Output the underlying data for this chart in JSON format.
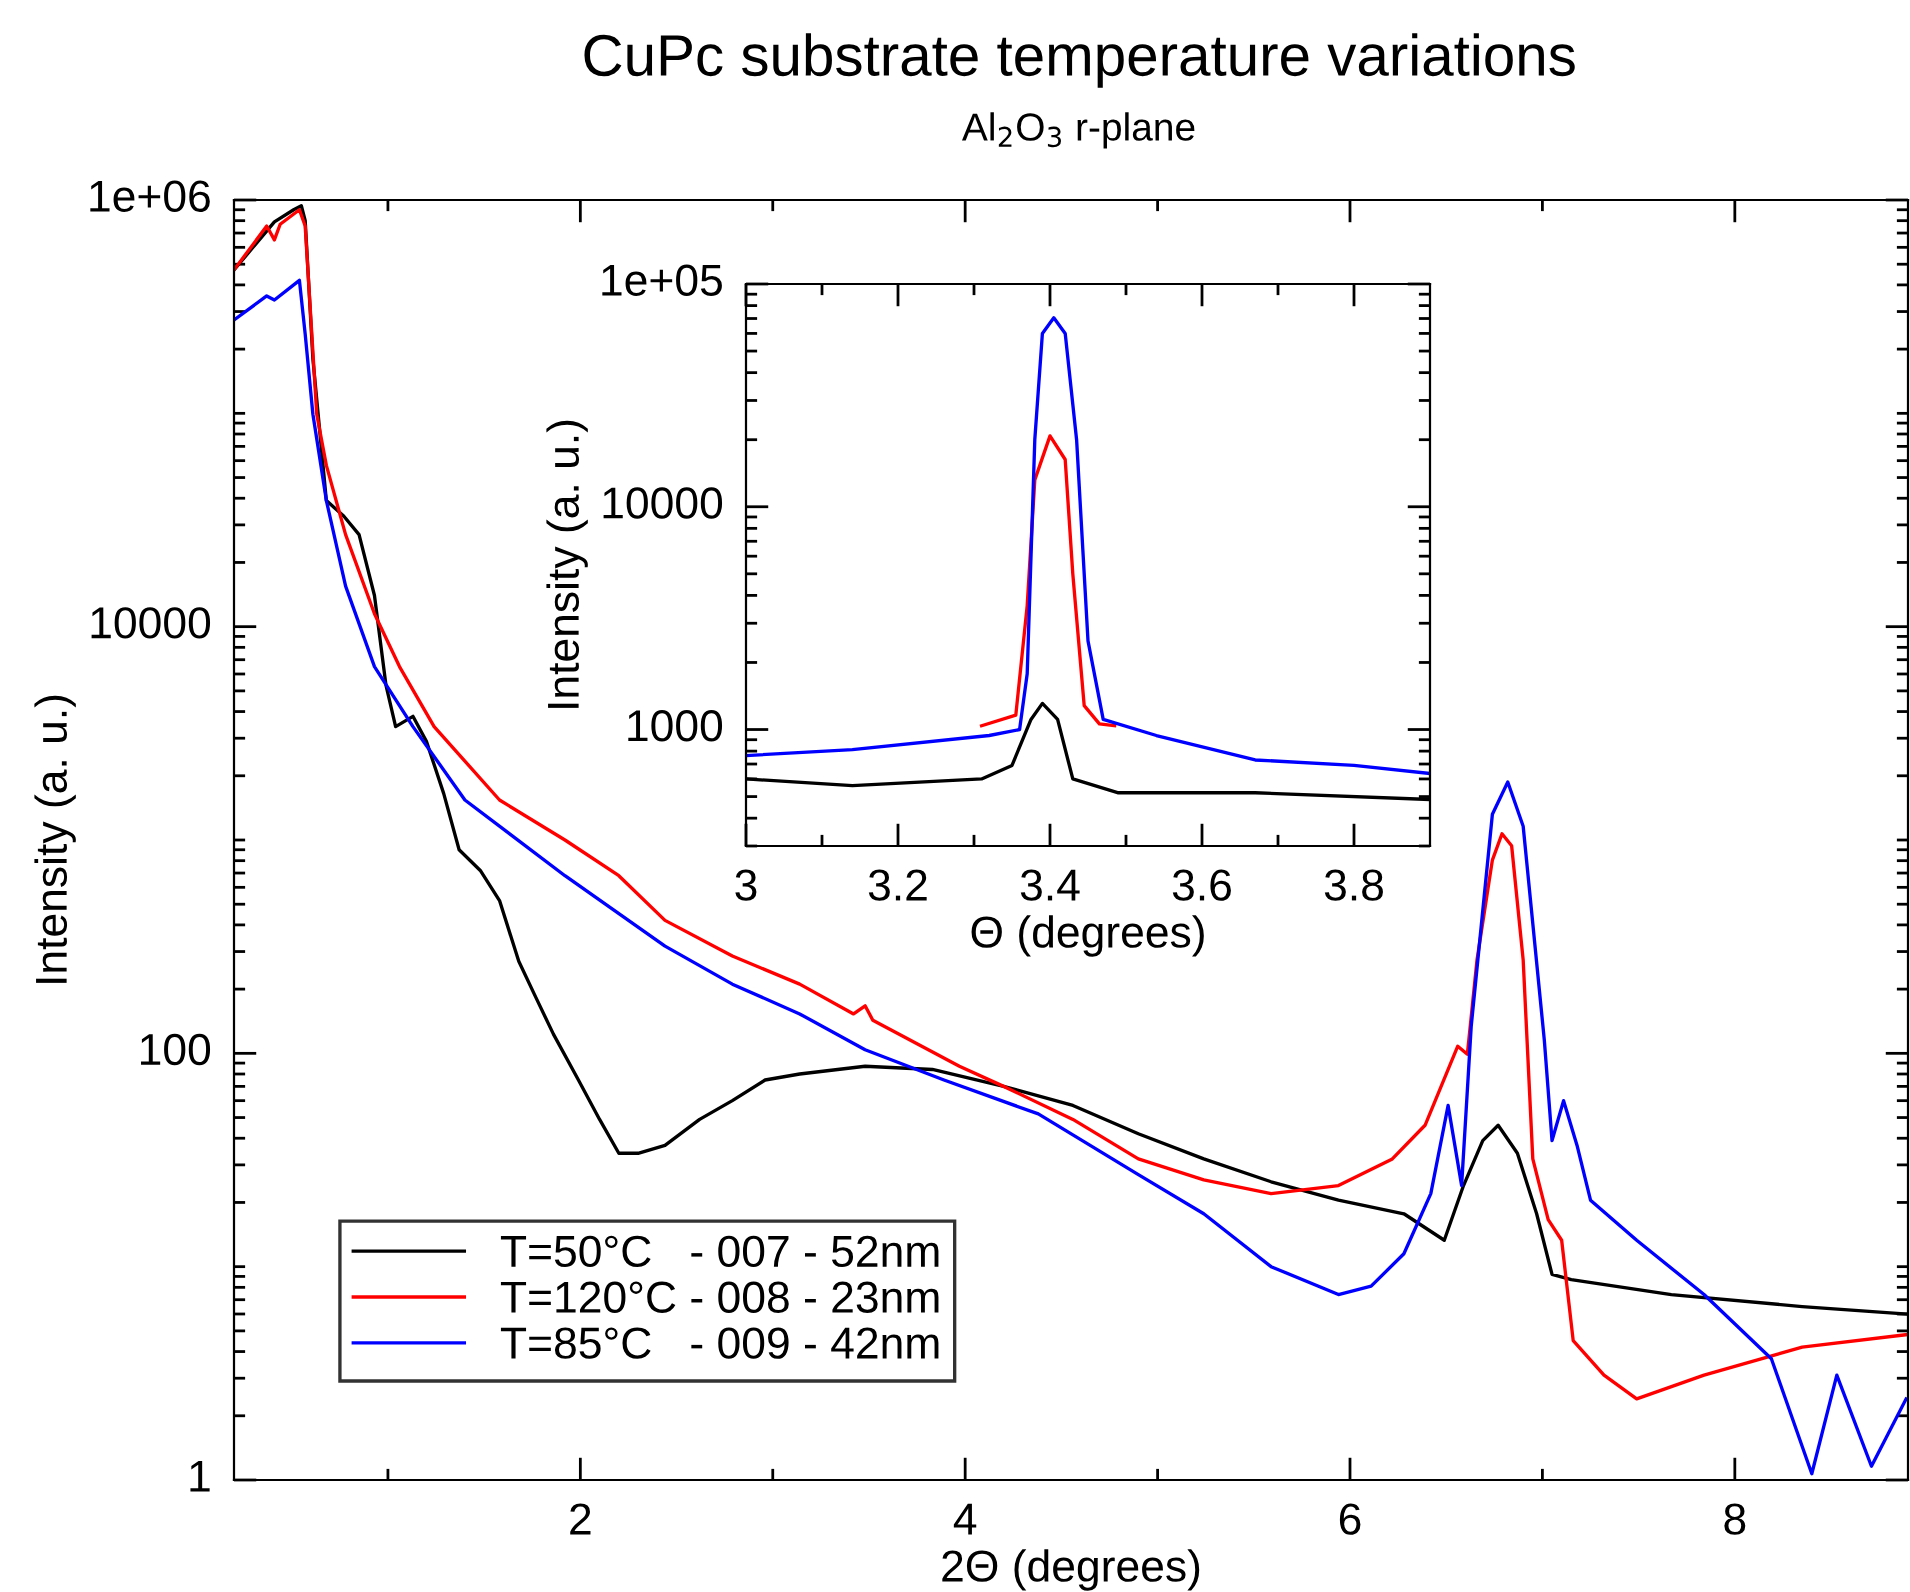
{
  "chart_data": [
    {
      "type": "line",
      "title": "CuPc substrate temperature variations",
      "subtitle": "Al$_{2}$O$_{3}$ r-plane",
      "xlabel": "2Θ (degrees)",
      "ylabel": "Intensity (a. u.)",
      "log": "y",
      "legend": "bottom left",
      "xlim": [
        0.2,
        8.9
      ],
      "ylim": [
        1,
        1000000
      ],
      "xticks": [
        {
          "value": 1,
          "label": null
        },
        2,
        {
          "value": 3,
          "label": null
        },
        4,
        {
          "value": 5,
          "label": null
        },
        6,
        {
          "value": 7,
          "label": null
        },
        8
      ],
      "yticks": [
        1,
        {
          "value": 2,
          "label": null
        },
        {
          "value": 3,
          "label": null
        },
        {
          "value": 4,
          "label": null
        },
        {
          "value": 5,
          "label": null
        },
        {
          "value": 6,
          "label": null
        },
        {
          "value": 7,
          "label": null
        },
        {
          "value": 8,
          "label": null
        },
        {
          "value": 9,
          "label": null
        },
        {
          "value": 10,
          "label": null
        },
        {
          "value": 20,
          "label": null
        },
        {
          "value": 30,
          "label": null
        },
        {
          "value": 40,
          "label": null
        },
        {
          "value": 50,
          "label": null
        },
        {
          "value": 60,
          "label": null
        },
        {
          "value": 70,
          "label": null
        },
        {
          "value": 80,
          "label": null
        },
        {
          "value": 90,
          "label": null
        },
        100,
        {
          "value": 200,
          "label": null
        },
        {
          "value": 300,
          "label": null
        },
        {
          "value": 400,
          "label": null
        },
        {
          "value": 500,
          "label": null
        },
        {
          "value": 600,
          "label": null
        },
        {
          "value": 700,
          "label": null
        },
        {
          "value": 800,
          "label": null
        },
        {
          "value": 900,
          "label": null
        },
        {
          "value": 1000,
          "label": null
        },
        {
          "value": 2000,
          "label": null
        },
        {
          "value": 3000,
          "label": null
        },
        {
          "value": 4000,
          "label": null
        },
        {
          "value": 5000,
          "label": null
        },
        {
          "value": 6000,
          "label": null
        },
        {
          "value": 7000,
          "label": null
        },
        {
          "value": 8000,
          "label": null
        },
        {
          "value": 9000,
          "label": null
        },
        10000,
        {
          "value": 20000,
          "label": null
        },
        {
          "value": 30000,
          "label": null
        },
        {
          "value": 40000,
          "label": null
        },
        {
          "value": 50000,
          "label": null
        },
        {
          "value": 60000,
          "label": null
        },
        {
          "value": 70000,
          "label": null
        },
        {
          "value": 80000,
          "label": null
        },
        {
          "value": 90000,
          "label": null
        },
        {
          "value": 100000,
          "label": null
        },
        {
          "value": 200000,
          "label": null
        },
        {
          "value": 300000,
          "label": null
        },
        {
          "value": 400000,
          "label": null
        },
        {
          "value": 500000,
          "label": null
        },
        {
          "value": 600000,
          "label": null
        },
        {
          "value": 700000,
          "label": null
        },
        {
          "value": 800000,
          "label": null
        },
        {
          "value": 900000,
          "label": null
        },
        {
          "value": 1000000,
          "label": "1e+06"
        }
      ],
      "series": [
        {
          "name": "T=50°C   - 007 - 52nm",
          "color": "#000000",
          "x": [
            0.2,
            0.41,
            0.51,
            0.55,
            0.57,
            0.61,
            0.65,
            0.68,
            0.77,
            0.85,
            0.93,
            0.99,
            1.04,
            1.13,
            1.2,
            1.29,
            1.37,
            1.48,
            1.58,
            1.68,
            1.76,
            1.86,
            1.99,
            2.1,
            2.2,
            2.3,
            2.44,
            2.62,
            2.79,
            2.96,
            3.14,
            3.48,
            3.83,
            4.2,
            4.56,
            4.9,
            5.24,
            5.59,
            5.94,
            6.28,
            6.49,
            6.59,
            6.69,
            6.77,
            6.87,
            6.97,
            7.05,
            7.15,
            7.67,
            8.35,
            8.89
          ],
          "values": [
            470000,
            790000,
            900000,
            940000,
            800000,
            180000,
            75000,
            39000,
            33000,
            27000,
            14000,
            5300,
            3400,
            3800,
            2900,
            1650,
            900,
            720,
            520,
            270,
            190,
            123,
            75,
            49,
            34,
            34,
            37,
            49,
            60,
            75,
            80,
            87,
            84,
            70,
            57,
            42,
            32,
            25,
            20.5,
            17.7,
            13.3,
            24,
            39,
            46,
            34,
            17.7,
            9.2,
            8.7,
            7.4,
            6.5,
            6.0
          ]
        },
        {
          "name": "T=120°C - 008 - 23nm",
          "color": "#ff0000",
          "x": [
            0.2,
            0.37,
            0.41,
            0.44,
            0.54,
            0.57,
            0.63,
            0.68,
            0.78,
            0.93,
            1.06,
            1.24,
            1.58,
            1.92,
            2.2,
            2.44,
            2.79,
            3.14,
            3.42,
            3.48,
            3.52,
            3.97,
            4.2,
            4.56,
            4.9,
            5.24,
            5.59,
            5.94,
            6.22,
            6.39,
            6.56,
            6.61,
            6.66,
            6.74,
            6.79,
            6.84,
            6.9,
            6.95,
            7.03,
            7.1,
            7.16,
            7.32,
            7.49,
            7.84,
            8.35,
            8.89
          ],
          "values": [
            470000,
            755000,
            650000,
            770000,
            900000,
            755000,
            99000,
            57000,
            27000,
            11500,
            6500,
            3400,
            1540,
            1000,
            680,
            420,
            286,
            211,
            153,
            167,
            143,
            87,
            70,
            49,
            32,
            25.5,
            22,
            24,
            32,
            46,
            108,
            99,
            274,
            805,
            1070,
            940,
            274,
            32,
            16.6,
            13.3,
            4.5,
            3.1,
            2.4,
            3.1,
            4.2,
            4.8
          ]
        },
        {
          "name": "T=85°C   - 009 - 42nm",
          "color": "#0000ff",
          "x": [
            0.2,
            0.37,
            0.41,
            0.54,
            0.57,
            0.61,
            0.68,
            0.78,
            0.93,
            1.13,
            1.4,
            1.92,
            2.44,
            2.79,
            3.14,
            3.48,
            3.89,
            4.38,
            4.9,
            5.24,
            5.59,
            5.94,
            6.11,
            6.28,
            6.42,
            6.51,
            6.58,
            6.63,
            6.74,
            6.82,
            6.9,
            7.01,
            7.05,
            7.11,
            7.18,
            7.25,
            7.49,
            7.84,
            8.19,
            8.4,
            8.53,
            8.71,
            8.89
          ],
          "values": [
            274000,
            355000,
            340000,
            420000,
            235000,
            99000,
            39000,
            15500,
            6500,
            3400,
            1540,
            680,
            318,
            211,
            153,
            104,
            75,
            52,
            27,
            17.7,
            10,
            7.4,
            8.1,
            11.5,
            22,
            57,
            24,
            134,
            1320,
            1870,
            1160,
            115,
            39,
            60,
            37,
            20.5,
            13.3,
            7.4,
            3.7,
            1.07,
            3.1,
            1.16,
            2.4
          ]
        }
      ]
    },
    {
      "type": "line",
      "xlabel": "Θ (degrees)",
      "ylabel": "Intensity (a. u.)",
      "log": "y",
      "xlim": [
        3,
        3.9
      ],
      "ylim": [
        300,
        100000
      ],
      "xticks": [
        3,
        {
          "value": 3.1,
          "label": null
        },
        3.2,
        {
          "value": 3.3,
          "label": null
        },
        3.4,
        {
          "value": 3.5,
          "label": null
        },
        3.6,
        {
          "value": 3.7,
          "label": null
        },
        3.8
      ],
      "yticks": [
        {
          "value": 300,
          "label": null
        },
        {
          "value": 400,
          "label": null
        },
        {
          "value": 500,
          "label": null
        },
        {
          "value": 600,
          "label": null
        },
        {
          "value": 700,
          "label": null
        },
        {
          "value": 800,
          "label": null
        },
        {
          "value": 900,
          "label": null
        },
        1000,
        {
          "value": 2000,
          "label": null
        },
        {
          "value": 3000,
          "label": null
        },
        {
          "value": 4000,
          "label": null
        },
        {
          "value": 5000,
          "label": null
        },
        {
          "value": 6000,
          "label": null
        },
        {
          "value": 7000,
          "label": null
        },
        {
          "value": 8000,
          "label": null
        },
        {
          "value": 9000,
          "label": null
        },
        10000,
        {
          "value": 20000,
          "label": null
        },
        {
          "value": 30000,
          "label": null
        },
        {
          "value": 40000,
          "label": null
        },
        {
          "value": 50000,
          "label": null
        },
        {
          "value": 60000,
          "label": null
        },
        {
          "value": 70000,
          "label": null
        },
        {
          "value": 80000,
          "label": null
        },
        {
          "value": 90000,
          "label": null
        },
        {
          "value": 100000,
          "label": "1e+05"
        }
      ],
      "series": [
        {
          "color": "#000000",
          "x": [
            3.0,
            3.14,
            3.31,
            3.35,
            3.375,
            3.39,
            3.41,
            3.43,
            3.49,
            3.67,
            3.9
          ],
          "values": [
            600,
            560,
            600,
            690,
            1110,
            1310,
            1110,
            600,
            520,
            520,
            485
          ]
        },
        {
          "color": "#ff0000",
          "x": [
            3.31,
            3.355,
            3.37,
            3.38,
            3.4,
            3.42,
            3.43,
            3.445,
            3.465,
            3.485
          ],
          "values": [
            1040,
            1160,
            3600,
            13200,
            20800,
            16300,
            5000,
            1280,
            1060,
            1040
          ]
        },
        {
          "color": "#0000ff",
          "x": [
            3.0,
            3.14,
            3.32,
            3.36,
            3.37,
            3.38,
            3.39,
            3.405,
            3.42,
            3.435,
            3.45,
            3.47,
            3.54,
            3.67,
            3.8,
            3.9
          ],
          "values": [
            764,
            813,
            940,
            1000,
            1780,
            20000,
            60000,
            70500,
            60000,
            20000,
            2500,
            1110,
            940,
            730,
            690,
            635
          ]
        }
      ]
    }
  ]
}
